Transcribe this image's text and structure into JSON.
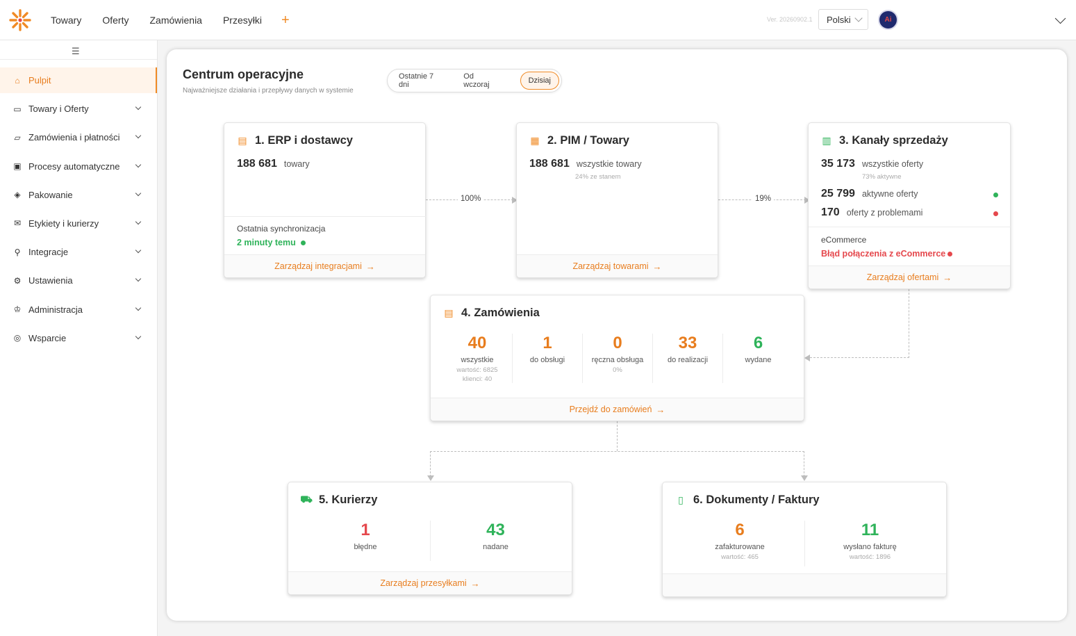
{
  "topnav": {
    "items": [
      "Towary",
      "Oferty",
      "Zamówienia",
      "Przesyłki"
    ],
    "plus": "+"
  },
  "version": "Ver. 20260902.1",
  "language": "Polski",
  "avatar_text": "Ai",
  "sidebar": {
    "items": [
      {
        "label": "Pulpit",
        "icon": "home-icon",
        "active": true
      },
      {
        "label": "Towary i Oferty",
        "icon": "bag-icon"
      },
      {
        "label": "Zamówienia i płatności",
        "icon": "folder-icon"
      },
      {
        "label": "Procesy automatyczne",
        "icon": "process-icon"
      },
      {
        "label": "Pakowanie",
        "icon": "box-icon"
      },
      {
        "label": "Etykiety i kurierzy",
        "icon": "mail-icon"
      },
      {
        "label": "Integracje",
        "icon": "plug-icon"
      },
      {
        "label": "Ustawienia",
        "icon": "gear-icon"
      },
      {
        "label": "Administracja",
        "icon": "admin-icon"
      },
      {
        "label": "Wsparcie",
        "icon": "support-icon"
      }
    ]
  },
  "main": {
    "title": "Centrum operacyjne",
    "subtitle": "Najważniejsze działania i przepływy danych w systemie",
    "range": [
      "Ostatnie 7 dni",
      "Od wczoraj",
      "Dzisiaj"
    ],
    "range_selected": "Dzisiaj"
  },
  "erp": {
    "title": "1. ERP i dostawcy",
    "count": "188 681",
    "count_label": "towary",
    "sync_label": "Ostatnia synchronizacja",
    "sync_value": "2 minuty temu",
    "footer": "Zarządzaj integracjami"
  },
  "pim": {
    "title": "2. PIM / Towary",
    "count": "188 681",
    "count_label": "wszystkie towary",
    "count_sub": "24% ze stanem",
    "footer": "Zarządzaj towarami"
  },
  "channels": {
    "title": "3. Kanały sprzedaży",
    "all": "35 173",
    "all_label": "wszystkie oferty",
    "all_sub": "73% aktywne",
    "active": "25 799",
    "active_label": "aktywne oferty",
    "problems": "170",
    "problems_label": "oferty z problemami",
    "ecom_label": "eCommerce",
    "ecom_error": "Błąd połączenia z eCommerce",
    "footer": "Zarządzaj ofertami"
  },
  "flow": {
    "erp_to_pim": "100%",
    "pim_to_channels": "19%"
  },
  "orders": {
    "title": "4. Zamówienia",
    "kpis": [
      {
        "value": "40",
        "label": "wszystkie",
        "sub1": "wartość: 6825",
        "sub2": "klienci: 40"
      },
      {
        "value": "1",
        "label": "do obsługi"
      },
      {
        "value": "0",
        "label": "ręczna obsługa",
        "sub1": "0%"
      },
      {
        "value": "33",
        "label": "do realizacji"
      },
      {
        "value": "6",
        "label": "wydane"
      }
    ],
    "footer": "Przejdź do zamówień"
  },
  "couriers": {
    "title": "5. Kurierzy",
    "kpis": [
      {
        "value": "1",
        "label": "błędne"
      },
      {
        "value": "43",
        "label": "nadane"
      }
    ],
    "footer": "Zarządzaj przesyłkami"
  },
  "documents": {
    "title": "6. Dokumenty / Faktury",
    "kpis": [
      {
        "value": "6",
        "label": "zafakturowane",
        "sub1": "wartość: 465"
      },
      {
        "value": "11",
        "label": "wysłano fakturę",
        "sub1": "wartość: 1896"
      }
    ]
  },
  "colors": {
    "accent": "#f08a24",
    "success": "#2fb35a",
    "danger": "#e5484d"
  }
}
